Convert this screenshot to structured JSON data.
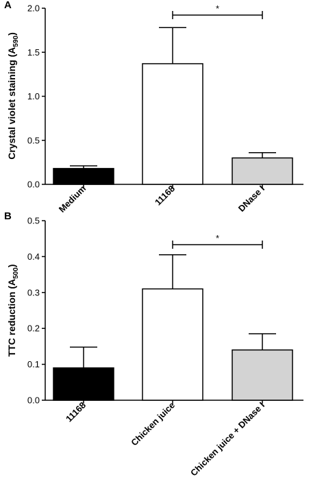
{
  "chart_data": [
    {
      "panel": "A",
      "type": "bar",
      "ylabel": "Crystal violet staining (A",
      "ylabel_sub": "590",
      "ylabel_end": ")",
      "ylim": [
        0,
        2.0
      ],
      "yticks": [
        "0.0",
        "0.5",
        "1.0",
        "1.5",
        "2.0"
      ],
      "ytick_values": [
        0,
        0.5,
        1.0,
        1.5,
        2.0
      ],
      "categories": [
        "Medium",
        "11168",
        "DNase I"
      ],
      "values": [
        0.18,
        1.37,
        0.3
      ],
      "errors": [
        0.03,
        0.41,
        0.06
      ],
      "colors": [
        "#000000",
        "#ffffff",
        "#d3d3d3"
      ],
      "significance": {
        "from": 1,
        "to": 2,
        "label": "*"
      }
    },
    {
      "panel": "B",
      "type": "bar",
      "ylabel": "TTC reduction (A",
      "ylabel_sub": "500",
      "ylabel_end": ")",
      "ylim": [
        0,
        0.5
      ],
      "yticks": [
        "0.0",
        "0.1",
        "0.2",
        "0.3",
        "0.4",
        "0.5"
      ],
      "ytick_values": [
        0,
        0.1,
        0.2,
        0.3,
        0.4,
        0.5
      ],
      "categories": [
        "11168",
        "Chicken juice",
        "Chicken juice + DNase I"
      ],
      "values": [
        0.09,
        0.31,
        0.14
      ],
      "errors": [
        0.058,
        0.095,
        0.045
      ],
      "colors": [
        "#000000",
        "#ffffff",
        "#d3d3d3"
      ],
      "significance": {
        "from": 1,
        "to": 2,
        "label": "*"
      }
    }
  ]
}
